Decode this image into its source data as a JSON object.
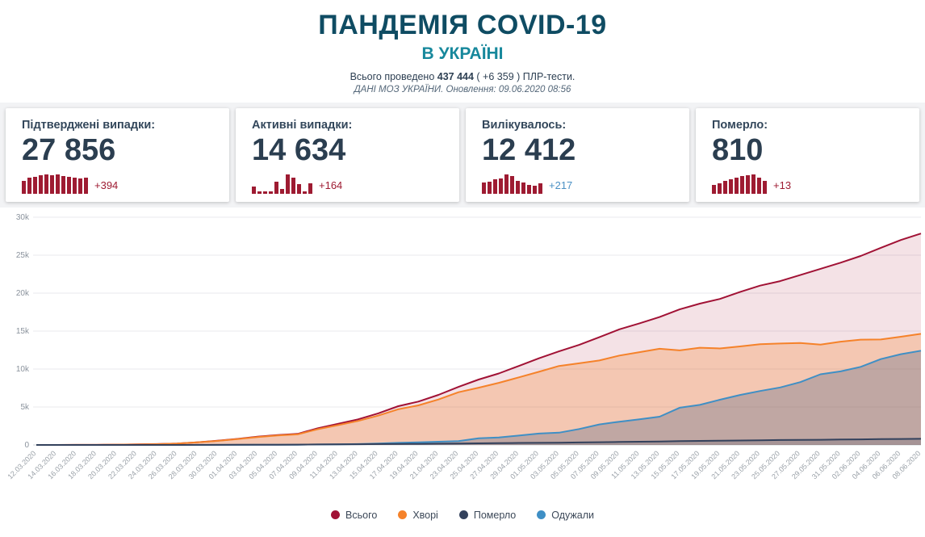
{
  "theme": {
    "title_color": "#0f4c63",
    "subtitle_color": "#17889c",
    "accent_red": "#9e1b32",
    "accent_blue": "#4a90c4"
  },
  "header": {
    "title": "ПАНДЕМІЯ COVID-19",
    "subtitle": "В УКРАЇНІ",
    "tests_prefix": "Всього проведено ",
    "tests_total": "437 444",
    "tests_suffix": " ( +6 359 ) ПЛР-тести.",
    "source_line": "ДАНІ МОЗ УКРАЇНИ. Оновлення: 09.06.2020 08:56"
  },
  "cards": [
    {
      "title": "Підтверджені випадки:",
      "value": "27 856",
      "delta": "+394",
      "delta_color": "#9e1b32",
      "bars": [
        328,
        402,
        421,
        456,
        477,
        463,
        483,
        442,
        420,
        405,
        376,
        394
      ]
    },
    {
      "title": "Активні випадки:",
      "value": "14 634",
      "delta": "+164",
      "delta_color": "#9e1b32",
      "bars": [
        118,
        -12,
        36,
        22,
        196,
        84,
        311,
        262,
        155,
        40,
        164
      ]
    },
    {
      "title": "Вилікувалось:",
      "value": "12 412",
      "delta": "+217",
      "delta_color": "#4a90c4",
      "bars": [
        240,
        262,
        307,
        331,
        416,
        380,
        272,
        234,
        198,
        176,
        217
      ]
    },
    {
      "title": "Померло:",
      "value": "810",
      "delta": "+13",
      "delta_color": "#9e1b32",
      "bars": [
        9,
        11,
        13,
        15,
        17,
        18,
        19,
        20,
        17,
        13
      ]
    }
  ],
  "chart_data": {
    "type": "area",
    "title": "",
    "xlabel": "",
    "ylabel": "",
    "ylim": [
      0,
      30000
    ],
    "yticks": [
      "0",
      "5k",
      "10k",
      "15k",
      "20k",
      "25k",
      "30k"
    ],
    "grid": true,
    "legend_position": "bottom",
    "x": [
      "12.03.2020",
      "14.03.2020",
      "16.03.2020",
      "18.03.2020",
      "20.03.2020",
      "22.03.2020",
      "24.03.2020",
      "26.03.2020",
      "28.03.2020",
      "30.03.2020",
      "01.04.2020",
      "03.04.2020",
      "05.04.2020",
      "07.04.2020",
      "09.04.2020",
      "11.04.2020",
      "13.04.2020",
      "15.04.2020",
      "17.04.2020",
      "19.04.2020",
      "21.04.2020",
      "23.04.2020",
      "25.04.2020",
      "27.04.2020",
      "29.04.2020",
      "01.05.2020",
      "03.05.2020",
      "05.05.2020",
      "07.05.2020",
      "09.05.2020",
      "11.05.2020",
      "13.05.2020",
      "15.05.2020",
      "17.05.2020",
      "19.05.2020",
      "21.05.2020",
      "23.05.2020",
      "25.05.2020",
      "27.05.2020",
      "29.05.2020",
      "31.05.2020",
      "02.06.2020",
      "04.06.2020",
      "06.06.2020",
      "08.06.2020"
    ],
    "series": [
      {
        "name": "Всього",
        "color": "#a11235",
        "fill": "rgba(161,18,53,0.12)",
        "values": [
          3,
          3,
          7,
          14,
          41,
          73,
          113,
          196,
          356,
          548,
          794,
          1096,
          1308,
          1462,
          2203,
          2777,
          3372,
          4161,
          5106,
          5710,
          6592,
          7647,
          8617,
          9410,
          10406,
          11411,
          12331,
          13184,
          14195,
          15232,
          16023,
          16847,
          17858,
          18616,
          19230,
          20148,
          20986,
          21584,
          22382,
          23204,
          24012,
          24895,
          25964,
          26999,
          27856
        ]
      },
      {
        "name": "Хворі",
        "color": "#f5822a",
        "fill": "rgba(245,130,42,0.28)",
        "values": [
          3,
          3,
          6,
          12,
          38,
          69,
          108,
          186,
          342,
          527,
          761,
          1040,
          1243,
          1389,
          2073,
          2605,
          3155,
          3859,
          4698,
          5212,
          5994,
          6950,
          7539,
          8179,
          8907,
          9634,
          10409,
          10760,
          11128,
          11781,
          12225,
          12672,
          12455,
          12805,
          12711,
          12975,
          13261,
          13365,
          13441,
          13214,
          13604,
          13874,
          13890,
          14256,
          14634
        ]
      },
      {
        "name": "Одужали",
        "color": "#3f8fc5",
        "fill": "rgba(95,110,135,0.35)",
        "values": [
          0,
          0,
          0,
          0,
          0,
          1,
          1,
          5,
          5,
          8,
          13,
          28,
          28,
          28,
          61,
          89,
          119,
          186,
          275,
          347,
          424,
          504,
          869,
          992,
          1238,
          1498,
          1619,
          2097,
          2706,
          3060,
          3373,
          3719,
          4906,
          5276,
          5955,
          6585,
          7108,
          7575,
          8272,
          9311,
          9690,
          10286,
          11312,
          11955,
          12412
        ]
      },
      {
        "name": "Померло",
        "color": "#33415c",
        "fill": "rgba(51,65,92,0.18)",
        "values": [
          0,
          0,
          1,
          2,
          3,
          3,
          4,
          5,
          9,
          13,
          20,
          28,
          37,
          45,
          69,
          83,
          98,
          116,
          133,
          151,
          174,
          193,
          209,
          239,
          261,
          279,
          303,
          327,
          361,
          391,
          425,
          456,
          497,
          535,
          564,
          588,
          617,
          644,
          669,
          679,
          718,
          735,
          762,
          788,
          810
        ]
      }
    ],
    "legend": [
      {
        "label": "Всього",
        "color": "#a11235"
      },
      {
        "label": "Хворі",
        "color": "#f5822a"
      },
      {
        "label": "Померло",
        "color": "#33415c"
      },
      {
        "label": "Одужали",
        "color": "#3f8fc5"
      }
    ]
  }
}
